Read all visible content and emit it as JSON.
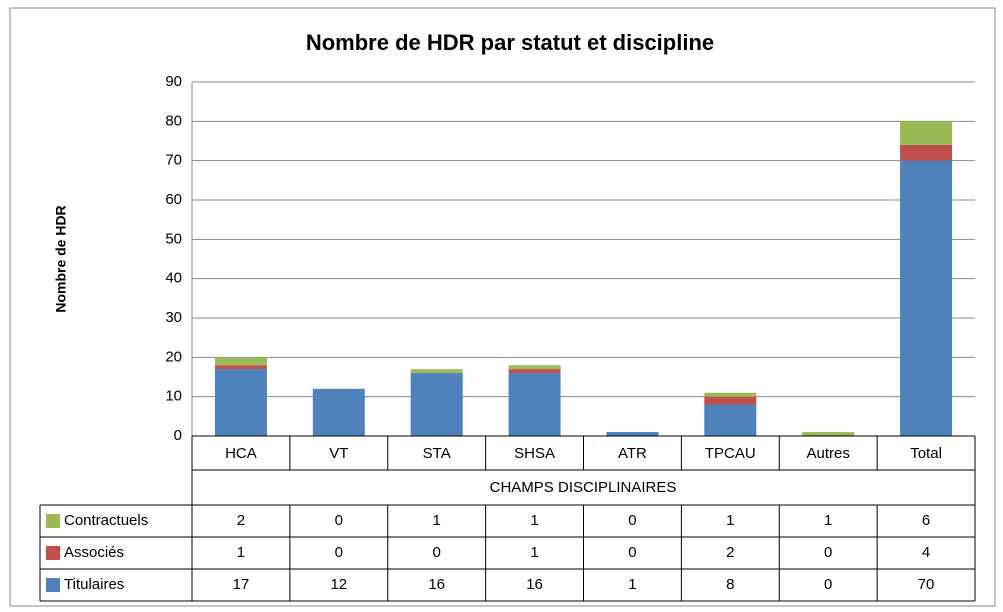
{
  "chart_data": {
    "type": "stacked_bar",
    "title": "Nombre de HDR par statut et discipline",
    "x_label": "CHAMPS DISCIPLINAIRES",
    "y_label": "Nombre de HDR",
    "categories": [
      "HCA",
      "VT",
      "STA",
      "SHSA",
      "ATR",
      "TPCAU",
      "Autres",
      "Total"
    ],
    "series": [
      {
        "name": "Titulaires",
        "color": "#4f81bd",
        "values": [
          17,
          12,
          16,
          16,
          1,
          8,
          0,
          70
        ]
      },
      {
        "name": "Associés",
        "color": "#c0504d",
        "values": [
          1,
          0,
          0,
          1,
          0,
          2,
          0,
          4
        ]
      },
      {
        "name": "Contractuels",
        "color": "#9bbb59",
        "values": [
          2,
          0,
          1,
          1,
          0,
          1,
          1,
          6
        ]
      }
    ],
    "ylim": [
      0,
      90
    ],
    "yticks": [
      0,
      10,
      20,
      30,
      40,
      50,
      60,
      70,
      80,
      90
    ],
    "grid": true
  }
}
